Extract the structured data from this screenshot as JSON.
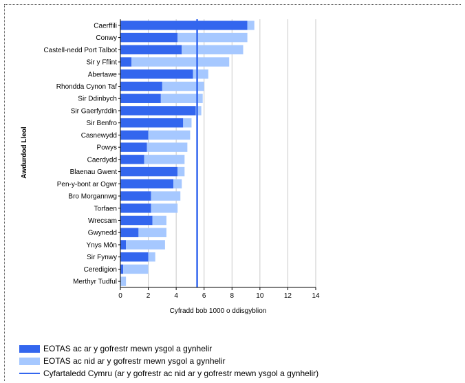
{
  "chart_data": {
    "type": "bar",
    "orientation": "horizontal",
    "stacked": true,
    "ylabel": "Awdurdod Lleol",
    "xlabel": "Cyfradd bob 1000 o ddisgyblion",
    "xlim": [
      0,
      14
    ],
    "xticks": [
      0,
      2,
      4,
      6,
      8,
      10,
      12,
      14
    ],
    "grid": true,
    "legend_position": "bottom",
    "categories": [
      "Caerffili",
      "Conwy",
      "Castell-nedd Port Talbot",
      "Sir y Fflint",
      "Abertawe",
      "Rhondda Cynon Taf",
      "Sir Ddinbych",
      "Sir Gaerfyrddin",
      "Sir Benfro",
      "Casnewydd",
      "Powys",
      "Caerdydd",
      "Blaenau Gwent",
      "Pen-y-bont ar Ogwr",
      "Bro Morgannwg",
      "Torfaen",
      "Wrecsam",
      "Gwynedd",
      "Ynys Môn",
      "Sir Fynwy",
      "Ceredigion",
      "Merthyr Tudful"
    ],
    "series": [
      {
        "name": "EOTAS ac ar y gofrestr mewn ysgol a gynhelir",
        "color": "#3366ee",
        "values": [
          9.1,
          4.1,
          4.4,
          0.8,
          5.2,
          3.0,
          2.9,
          5.4,
          4.5,
          2.0,
          1.9,
          1.7,
          4.1,
          3.8,
          2.2,
          2.2,
          2.3,
          1.3,
          0.4,
          2.0,
          0.2,
          0.0
        ]
      },
      {
        "name": "EOTAS ac nid ar y gofrestr mewn ysgol a gynhelir",
        "color": "#a6c8ff",
        "values": [
          0.5,
          5.0,
          4.4,
          7.0,
          1.1,
          3.0,
          3.0,
          0.4,
          0.6,
          3.0,
          2.9,
          2.9,
          0.5,
          0.6,
          2.1,
          1.9,
          1.0,
          2.0,
          2.8,
          0.5,
          1.8,
          0.4
        ]
      }
    ],
    "reference_line": {
      "name": "Cyfartaledd Cymru (ar y gofrestr ac nid ar y gofrestr mewn ysgol a gynhelir)",
      "value": 5.5,
      "color": "#3366ee"
    },
    "gridline_color": "#c8c8c8"
  }
}
